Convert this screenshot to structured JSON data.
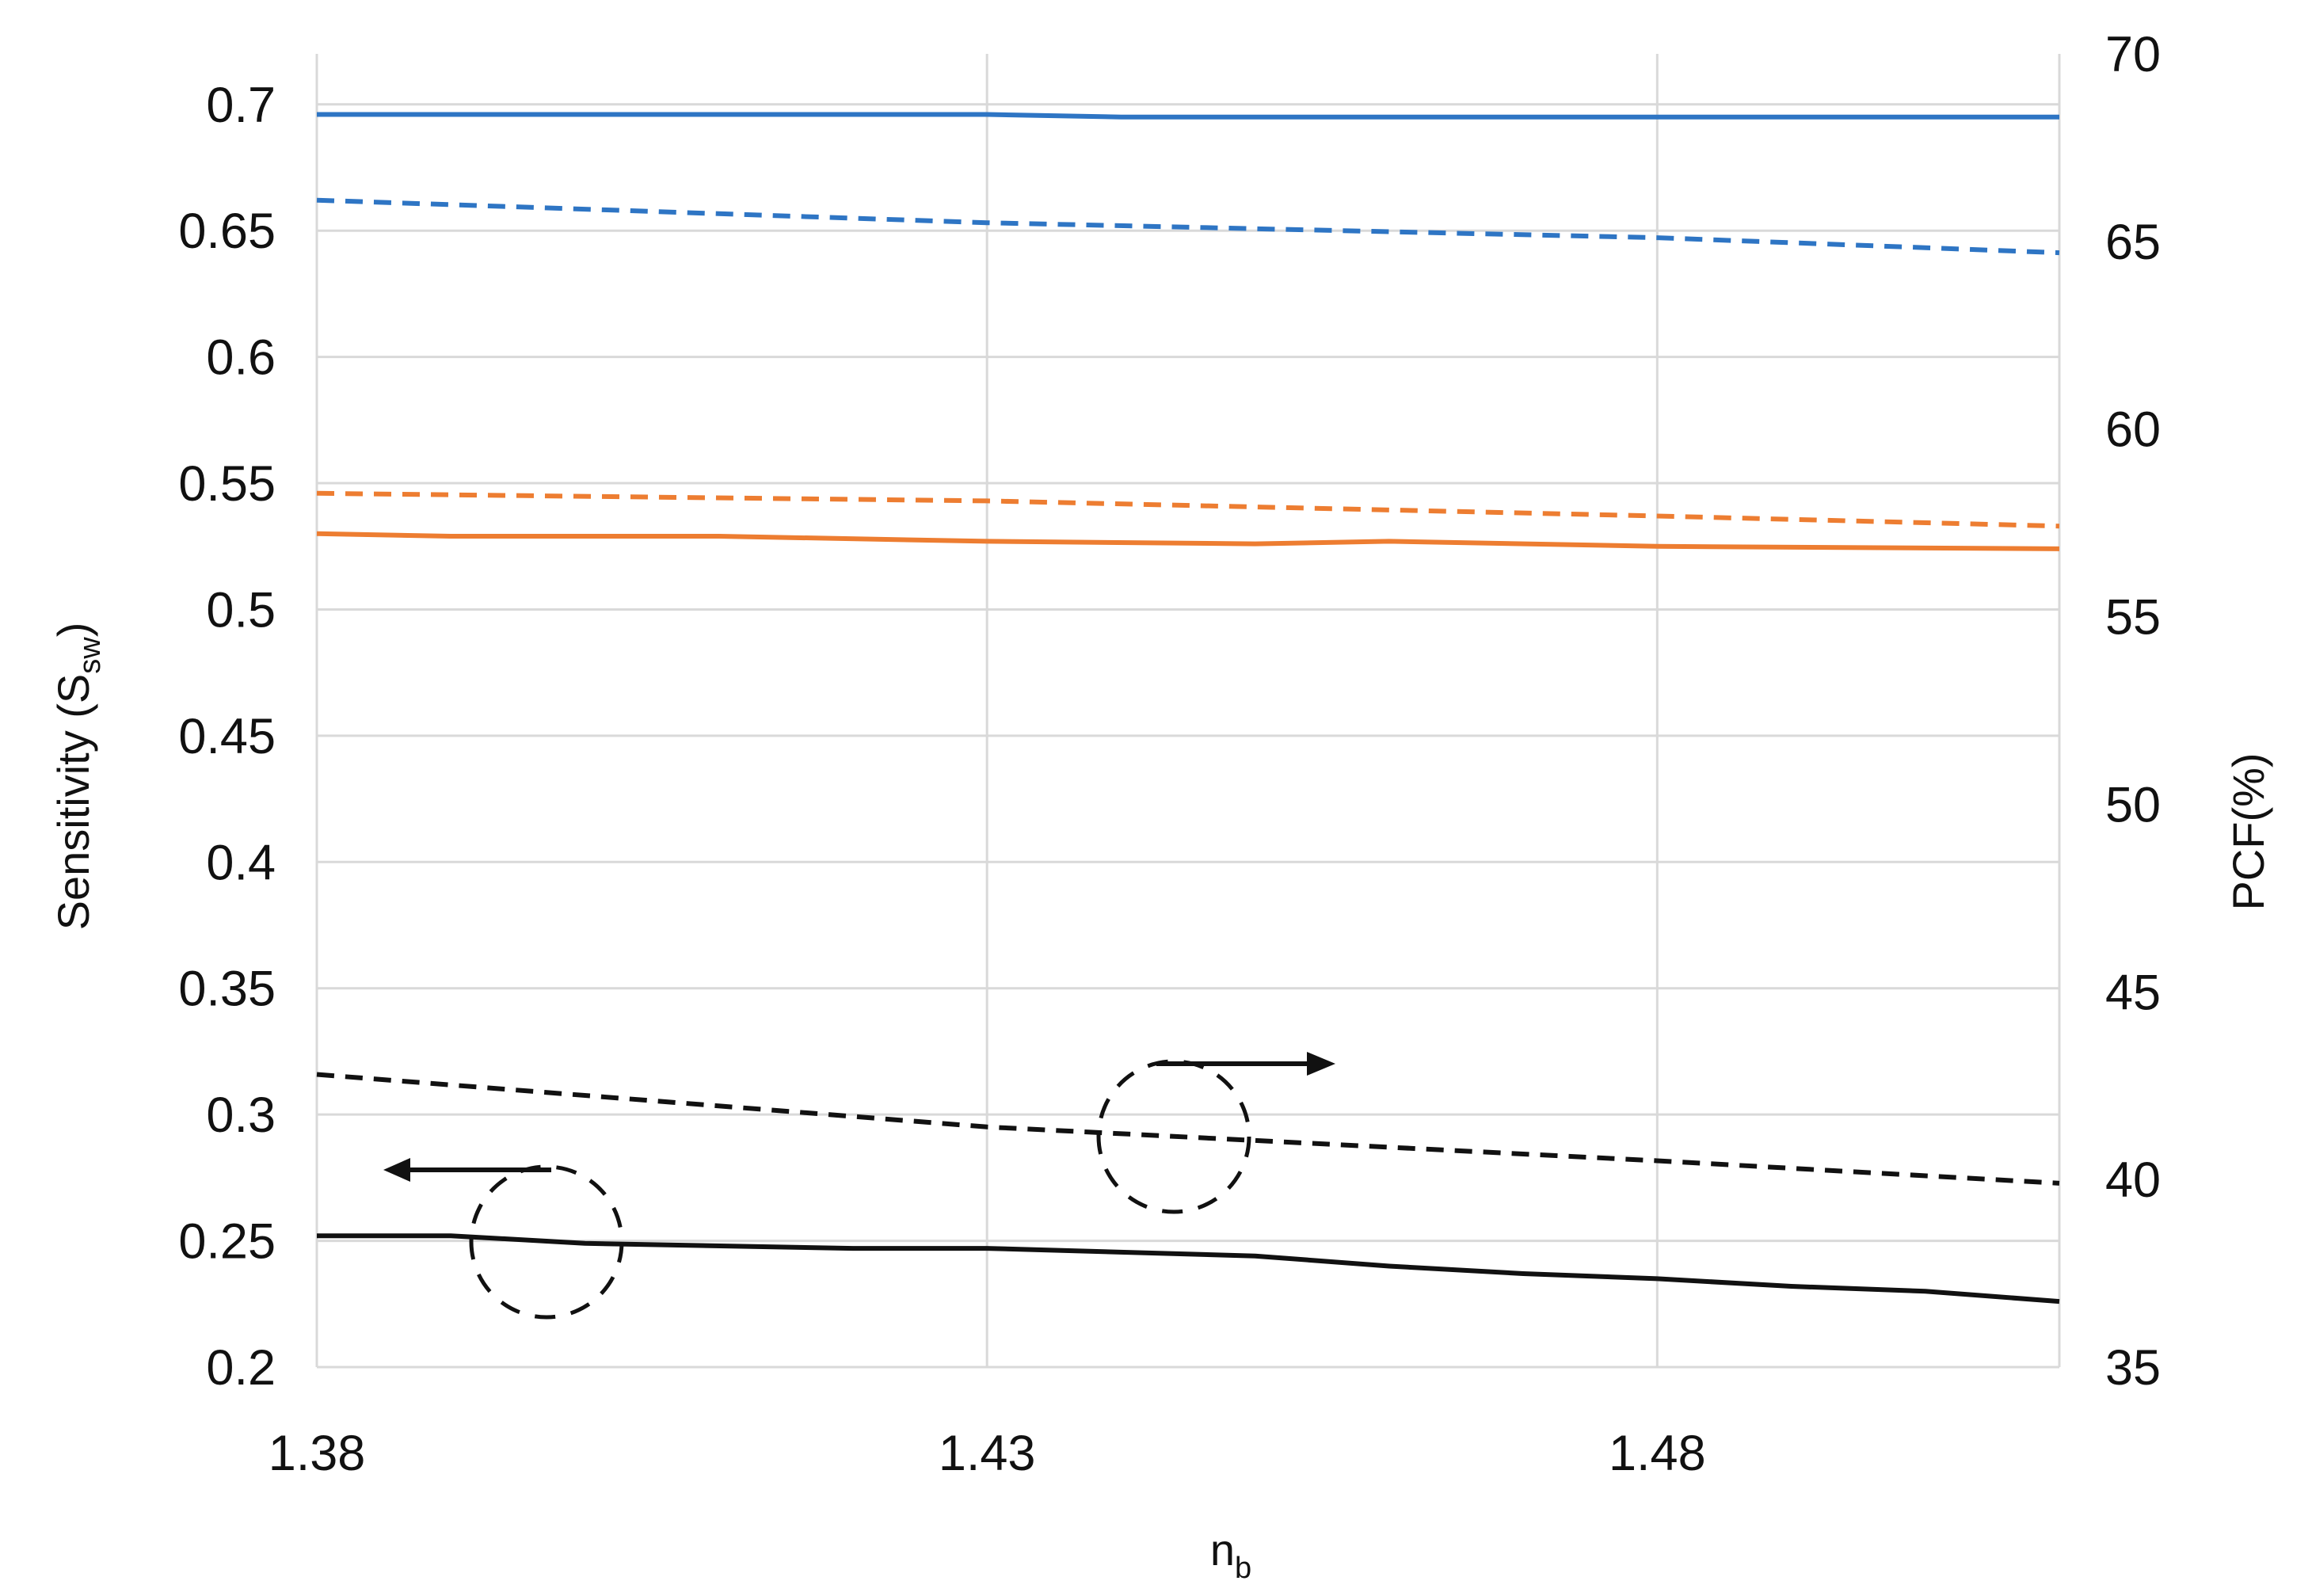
{
  "chart_data": {
    "type": "line",
    "xlabel": {
      "main": "n",
      "sub": "b"
    },
    "ylabel_left": {
      "main": "Sensitivity (S",
      "sub": "sw",
      "tail": ")"
    },
    "ylabel_right": "PCF(%)",
    "xlim": [
      1.38,
      1.51
    ],
    "ylim_left": [
      0.2,
      0.72
    ],
    "ylim_right": [
      35,
      70
    ],
    "grid": true,
    "x_ticks": [
      "1.38",
      "1.43",
      "1.48"
    ],
    "y_left_ticks": [
      "0.2",
      "0.25",
      "0.3",
      "0.35",
      "0.4",
      "0.45",
      "0.5",
      "0.55",
      "0.6",
      "0.65",
      "0.7"
    ],
    "y_right_ticks": [
      "35",
      "40",
      "45",
      "50",
      "55",
      "60",
      "65",
      "70"
    ],
    "series": [
      {
        "axis": "left",
        "style": "solid",
        "color": "#2e75c4",
        "x": [
          1.38,
          1.43,
          1.44,
          1.51
        ],
        "y": [
          0.696,
          0.696,
          0.695,
          0.695
        ]
      },
      {
        "axis": "right",
        "style": "dashed",
        "color": "#2e75c4",
        "x": [
          1.38,
          1.43,
          1.48,
          1.51
        ],
        "y": [
          66.1,
          65.5,
          65.1,
          64.7
        ]
      },
      {
        "axis": "left",
        "style": "dashed",
        "color": "#ed7d31",
        "x": [
          1.38,
          1.43,
          1.48,
          1.51
        ],
        "y": [
          0.546,
          0.543,
          0.537,
          0.533
        ]
      },
      {
        "axis": "left",
        "style": "solid",
        "color": "#ed7d31",
        "x": [
          1.38,
          1.39,
          1.41,
          1.43,
          1.45,
          1.46,
          1.48,
          1.51
        ],
        "y": [
          0.53,
          0.529,
          0.529,
          0.527,
          0.526,
          0.527,
          0.525,
          0.524
        ]
      },
      {
        "axis": "right",
        "style": "dashed",
        "color": "#111111",
        "x": [
          1.38,
          1.43,
          1.48,
          1.51
        ],
        "y": [
          42.8,
          41.4,
          40.5,
          39.9
        ]
      },
      {
        "axis": "left",
        "style": "solid",
        "color": "#111111",
        "x": [
          1.38,
          1.39,
          1.4,
          1.42,
          1.43,
          1.45,
          1.46,
          1.47,
          1.48,
          1.49,
          1.5,
          1.51
        ],
        "y": [
          0.252,
          0.252,
          0.249,
          0.247,
          0.247,
          0.244,
          0.24,
          0.237,
          0.235,
          0.232,
          0.23,
          0.226
        ]
      }
    ],
    "annotations": [
      {
        "type": "circle-arrow",
        "direction": "left",
        "target_axis": "left"
      },
      {
        "type": "circle-arrow",
        "direction": "right",
        "target_axis": "right"
      }
    ]
  }
}
